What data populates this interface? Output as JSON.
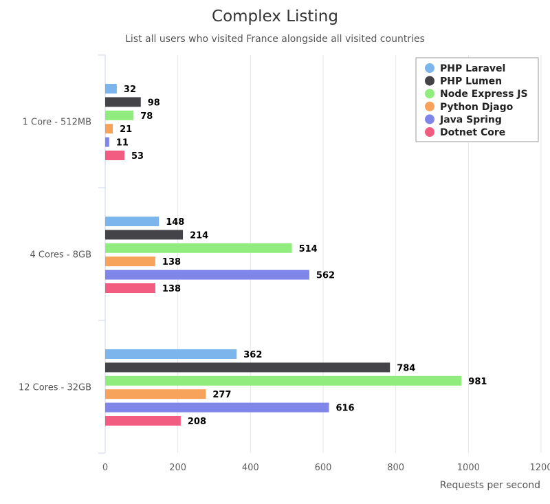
{
  "chart_data": {
    "type": "bar",
    "orientation": "horizontal",
    "title": "Complex Listing",
    "subtitle": "List all users who visited France alongside all visited countries",
    "xlabel": "Requests per second",
    "ylabel": "",
    "xlim": [
      0,
      1200
    ],
    "x_ticks": [
      0,
      200,
      400,
      600,
      800,
      1000,
      1200
    ],
    "grid": true,
    "legend_position": "top-right",
    "categories": [
      "1 Core - 512MB",
      "4 Cores - 8GB",
      "12 Cores - 32GB"
    ],
    "series": [
      {
        "name": "PHP Laravel",
        "color": "#7cb5ec",
        "values": [
          32,
          148,
          362
        ]
      },
      {
        "name": "PHP Lumen",
        "color": "#434348",
        "values": [
          98,
          214,
          784
        ]
      },
      {
        "name": "Node Express JS",
        "color": "#90ed7d",
        "values": [
          78,
          514,
          981
        ]
      },
      {
        "name": "Python Djago",
        "color": "#f7a35c",
        "values": [
          21,
          138,
          277
        ]
      },
      {
        "name": "Java Spring",
        "color": "#8085e9",
        "values": [
          11,
          562,
          616
        ]
      },
      {
        "name": "Dotnet Core",
        "color": "#f15c80",
        "values": [
          53,
          138,
          208
        ]
      }
    ]
  }
}
